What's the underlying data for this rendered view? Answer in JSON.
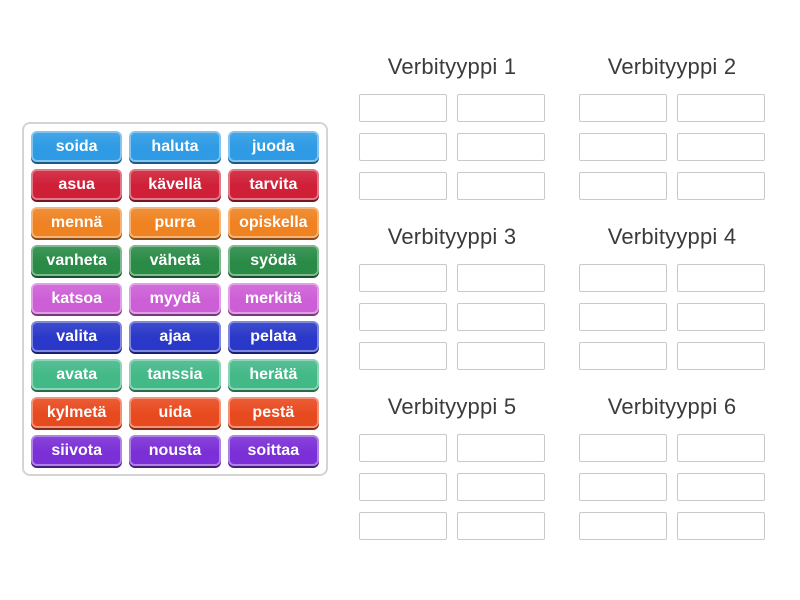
{
  "activity": {
    "type_label": "group-sort",
    "background": "#ffffff"
  },
  "word_bank": {
    "tiles": [
      {
        "label": "soida",
        "color": "#2E9BE4"
      },
      {
        "label": "haluta",
        "color": "#2E9BE4"
      },
      {
        "label": "juoda",
        "color": "#2E9BE4"
      },
      {
        "label": "asua",
        "color": "#CF2038"
      },
      {
        "label": "kävellä",
        "color": "#CF2038"
      },
      {
        "label": "tarvita",
        "color": "#CF2038"
      },
      {
        "label": "mennä",
        "color": "#EF8221"
      },
      {
        "label": "purra",
        "color": "#EF8221"
      },
      {
        "label": "opiskella",
        "color": "#EF8221"
      },
      {
        "label": "vanheta",
        "color": "#2A8B47"
      },
      {
        "label": "vähetä",
        "color": "#2A8B47"
      },
      {
        "label": "syödä",
        "color": "#2A8B47"
      },
      {
        "label": "katsoa",
        "color": "#CD5FD6"
      },
      {
        "label": "myydä",
        "color": "#CD5FD6"
      },
      {
        "label": "merkitä",
        "color": "#CD5FD6"
      },
      {
        "label": "valita",
        "color": "#2938C8"
      },
      {
        "label": "ajaa",
        "color": "#2938C8"
      },
      {
        "label": "pelata",
        "color": "#2938C8"
      },
      {
        "label": "avata",
        "color": "#43B988"
      },
      {
        "label": "tanssia",
        "color": "#43B988"
      },
      {
        "label": "herätä",
        "color": "#43B988"
      },
      {
        "label": "kylmetä",
        "color": "#E84A1F"
      },
      {
        "label": "uida",
        "color": "#E84A1F"
      },
      {
        "label": "pestä",
        "color": "#E84A1F"
      },
      {
        "label": "siivota",
        "color": "#7B2FD6"
      },
      {
        "label": "nousta",
        "color": "#7B2FD6"
      },
      {
        "label": "soittaa",
        "color": "#7B2FD6"
      }
    ]
  },
  "groups": [
    {
      "label": "Verbityyppi 1",
      "slot_count": 6
    },
    {
      "label": "Verbityyppi 2",
      "slot_count": 6
    },
    {
      "label": "Verbityyppi 3",
      "slot_count": 6
    },
    {
      "label": "Verbityyppi 4",
      "slot_count": 6
    },
    {
      "label": "Verbityyppi 5",
      "slot_count": 6
    },
    {
      "label": "Verbityyppi 6",
      "slot_count": 6
    }
  ],
  "colors": {
    "header_text": "#3b3b3b",
    "slot_border": "#c9c9c9",
    "bank_border": "#d4d4d4",
    "tile_text": "#ffffff"
  }
}
